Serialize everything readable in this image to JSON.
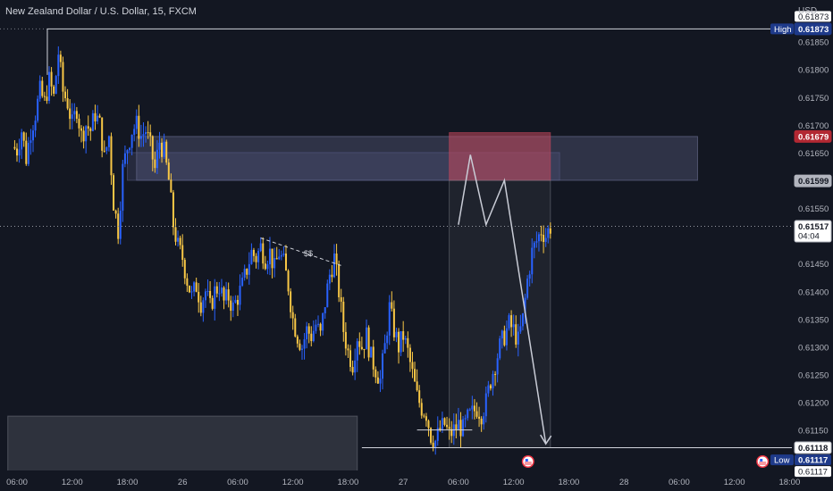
{
  "title": "New Zealand Dollar / U.S. Dollar, 15, FXCM",
  "currency": "USD",
  "chart_data": {
    "type": "candlestick",
    "symbol": "NZDUSD",
    "timeframe": "15",
    "source": "FXCM",
    "ylim": [
      0.6104,
      0.61925
    ],
    "y_ticks": [
      "0.61850",
      "0.61800",
      "0.61750",
      "0.61700",
      "0.61650",
      "0.61550",
      "0.61500",
      "0.61450",
      "0.61400",
      "0.61350",
      "0.61300",
      "0.61250",
      "0.61200",
      "0.61150",
      "0.61100",
      "0.61050"
    ],
    "x_ticks": [
      {
        "label": "06:00",
        "x": 0
      },
      {
        "label": "12:00",
        "x": 6
      },
      {
        "label": "18:00",
        "x": 12
      },
      {
        "label": "26",
        "x": 18
      },
      {
        "label": "06:00",
        "x": 24
      },
      {
        "label": "12:00",
        "x": 30
      },
      {
        "label": "18:00",
        "x": 36
      },
      {
        "label": "27",
        "x": 42
      },
      {
        "label": "06:00",
        "x": 48
      },
      {
        "label": "12:00",
        "x": 54
      },
      {
        "label": "18:00",
        "x": 60
      },
      {
        "label": "28",
        "x": 66
      },
      {
        "label": "06:00",
        "x": 72
      },
      {
        "label": "12:00",
        "x": 78
      },
      {
        "label": "18:00",
        "x": 84
      }
    ],
    "close_path": [
      [
        -0.5,
        0.6166
      ],
      [
        0,
        0.61655
      ],
      [
        0.5,
        0.6169
      ],
      [
        1,
        0.6164
      ],
      [
        1.5,
        0.6169
      ],
      [
        2,
        0.6172
      ],
      [
        2.5,
        0.6176
      ],
      [
        3,
        0.6174
      ],
      [
        3.5,
        0.6178
      ],
      [
        4,
        0.6175
      ],
      [
        4.5,
        0.6183
      ],
      [
        5,
        0.6176
      ],
      [
        5.5,
        0.6174
      ],
      [
        6,
        0.617
      ],
      [
        6.5,
        0.6173
      ],
      [
        7,
        0.6168
      ],
      [
        7.5,
        0.617
      ],
      [
        8,
        0.6169
      ],
      [
        8.5,
        0.6172
      ],
      [
        9,
        0.617
      ],
      [
        9.5,
        0.6164
      ],
      [
        10,
        0.6168
      ],
      [
        10.5,
        0.6156
      ],
      [
        11,
        0.6151
      ],
      [
        11.5,
        0.6162
      ],
      [
        12,
        0.6166
      ],
      [
        12.5,
        0.6169
      ],
      [
        13,
        0.617
      ],
      [
        13.5,
        0.6168
      ],
      [
        14,
        0.6169
      ],
      [
        14.5,
        0.6166
      ],
      [
        15,
        0.6162
      ],
      [
        15.5,
        0.6167
      ],
      [
        16,
        0.6165
      ],
      [
        16.5,
        0.616
      ],
      [
        17,
        0.6152
      ],
      [
        17.5,
        0.6148
      ],
      [
        18,
        0.6146
      ],
      [
        18.5,
        0.6142
      ],
      [
        19,
        0.6139
      ],
      [
        19.5,
        0.6141
      ],
      [
        20,
        0.6138
      ],
      [
        20.5,
        0.614
      ],
      [
        21,
        0.6137
      ],
      [
        21.5,
        0.614
      ],
      [
        22,
        0.6141
      ],
      [
        22.5,
        0.6138
      ],
      [
        23,
        0.6139
      ],
      [
        23.5,
        0.6137
      ],
      [
        24,
        0.6139
      ],
      [
        24.5,
        0.6141
      ],
      [
        25,
        0.6144
      ],
      [
        25.5,
        0.6147
      ],
      [
        26,
        0.6146
      ],
      [
        26.5,
        0.6148
      ],
      [
        27,
        0.6146
      ],
      [
        27.5,
        0.6147
      ],
      [
        28,
        0.6144
      ],
      [
        28.5,
        0.6147
      ],
      [
        29,
        0.6145
      ],
      [
        29.5,
        0.6141
      ],
      [
        30,
        0.6135
      ],
      [
        30.5,
        0.6132
      ],
      [
        31,
        0.613
      ],
      [
        31.5,
        0.6133
      ],
      [
        32,
        0.6132
      ],
      [
        32.5,
        0.6134
      ],
      [
        33,
        0.6132
      ],
      [
        33.5,
        0.6138
      ],
      [
        34,
        0.6143
      ],
      [
        34.5,
        0.6146
      ],
      [
        35,
        0.614
      ],
      [
        35.5,
        0.6133
      ],
      [
        36,
        0.6129
      ],
      [
        36.5,
        0.6127
      ],
      [
        37,
        0.6132
      ],
      [
        37.5,
        0.613
      ],
      [
        38,
        0.6132
      ],
      [
        38.5,
        0.6128
      ],
      [
        39,
        0.6126
      ],
      [
        39.5,
        0.6124
      ],
      [
        40,
        0.613
      ],
      [
        40.5,
        0.6137
      ],
      [
        41,
        0.6133
      ],
      [
        41.5,
        0.613
      ],
      [
        42,
        0.6132
      ],
      [
        42.5,
        0.6129
      ],
      [
        43,
        0.6125
      ],
      [
        43.5,
        0.6121
      ],
      [
        44,
        0.6119
      ],
      [
        44.5,
        0.6118
      ],
      [
        45,
        0.6114
      ],
      [
        45.5,
        0.6113
      ],
      [
        46,
        0.6115
      ],
      [
        46.5,
        0.6116
      ],
      [
        47,
        0.6114
      ],
      [
        47.5,
        0.6115
      ],
      [
        48,
        0.6116
      ],
      [
        48.5,
        0.6115
      ],
      [
        49,
        0.6117
      ],
      [
        49.5,
        0.6118
      ],
      [
        50,
        0.6119
      ],
      [
        50.5,
        0.6118
      ],
      [
        51,
        0.612
      ],
      [
        51.5,
        0.6124
      ],
      [
        52,
        0.6127
      ],
      [
        52.5,
        0.613
      ],
      [
        53,
        0.6132
      ],
      [
        53.5,
        0.6134
      ],
      [
        54,
        0.6133
      ],
      [
        54.5,
        0.6131
      ],
      [
        55,
        0.6135
      ],
      [
        55.5,
        0.6142
      ],
      [
        56,
        0.6147
      ],
      [
        56.5,
        0.6149
      ],
      [
        57,
        0.6151
      ],
      [
        57.5,
        0.615
      ],
      [
        58,
        0.61517
      ]
    ],
    "levels": [
      {
        "name": "High",
        "value": 0.61873,
        "label": "0.61873"
      },
      {
        "name": "current_price",
        "value": 0.61517,
        "label": "0.61517",
        "countdown": "04:04"
      },
      {
        "name": "zone_top",
        "value": 0.61679,
        "label": "0.61679"
      },
      {
        "name": "zone_mid",
        "value": 0.61599,
        "label": "0.61599"
      },
      {
        "name": "level_61118",
        "value": 0.61118,
        "label": "0.61118"
      },
      {
        "name": "Low",
        "value": 0.61117,
        "label": "0.61117"
      }
    ],
    "annotations": {
      "dollar_label": "$$",
      "high_label": "High",
      "low_label": "Low"
    },
    "zones": [
      {
        "name": "supply-zone-outer",
        "x": [
          13,
          74
        ],
        "y": [
          0.616,
          0.61679
        ],
        "color": "#7b7fa8"
      },
      {
        "name": "supply-zone-inner",
        "x": [
          12,
          59
        ],
        "y": [
          0.6165,
          0.616
        ],
        "color": "#5b5f8a"
      },
      {
        "name": "demand-zone-left",
        "x": [
          -1,
          37
        ],
        "y": [
          0.6105,
          0.61175
        ],
        "color": "#787b86"
      },
      {
        "name": "red-zone",
        "x": [
          47,
          58
        ],
        "y": [
          0.616,
          0.61686
        ],
        "color": "#c7485d"
      },
      {
        "name": "projection-area",
        "x": [
          47,
          58
        ],
        "y": [
          0.61118,
          0.616
        ],
        "color": "#787b86"
      }
    ],
    "projection_path": [
      [
        48,
        0.6152
      ],
      [
        49.3,
        0.61646
      ],
      [
        51,
        0.6152
      ],
      [
        53,
        0.616
      ],
      [
        57.5,
        0.61125
      ]
    ],
    "colors": {
      "up": "#2962ff",
      "down": "#f9c846",
      "background": "#131722",
      "grid": "#2a2e39",
      "price_tag": "#b22833",
      "high_low_tag": "#1e3a8a"
    }
  }
}
